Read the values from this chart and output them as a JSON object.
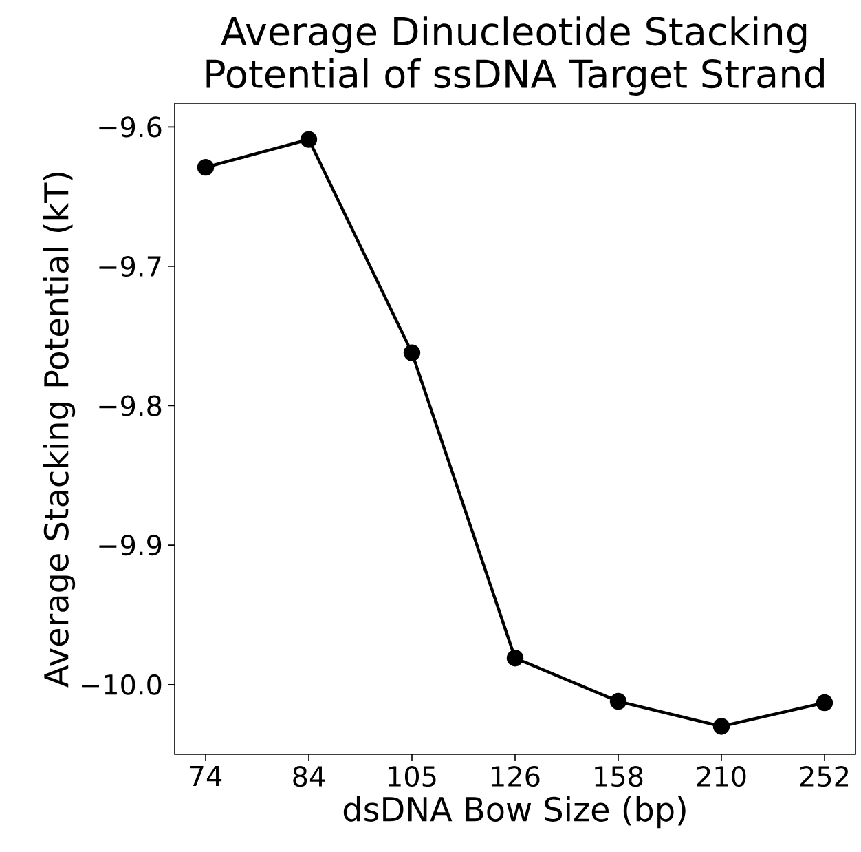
{
  "chart_data": {
    "type": "line",
    "title": "Average Dinucleotide Stacking\nPotential of ssDNA Target Strand",
    "xlabel": "dsDNA Bow Size (bp)",
    "ylabel": "Average Stacking Potential (kT)",
    "categories": [
      "74",
      "84",
      "105",
      "126",
      "158",
      "210",
      "252"
    ],
    "series": [
      {
        "color": "#000000",
        "values": [
          -9.629,
          -9.609,
          -9.762,
          -9.981,
          -10.012,
          -10.03,
          -10.013
        ]
      }
    ],
    "ylim": [
      -10.05,
      -9.583
    ],
    "yticks": [
      {
        "value": -10.0,
        "label": "−10.0"
      },
      {
        "value": -9.9,
        "label": "−9.9"
      },
      {
        "value": -9.8,
        "label": "−9.8"
      },
      {
        "value": -9.7,
        "label": "−9.7"
      },
      {
        "value": -9.6,
        "label": "−9.6"
      }
    ],
    "marker": "circle",
    "line_style": "solid"
  }
}
